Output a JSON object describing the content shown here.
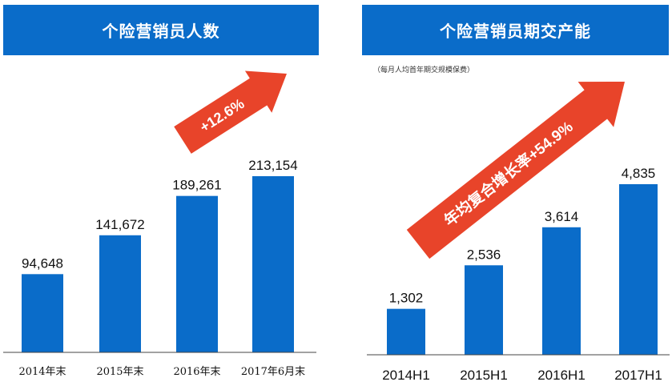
{
  "colors": {
    "header_bg": "#0A6CC9",
    "bar": "#0A6CC9",
    "arrow": "#E8442A",
    "axis": "#444444"
  },
  "left": {
    "title": "个险营销员人数",
    "arrow_label": "+12.6%"
  },
  "right": {
    "title": "个险营销员期交产能",
    "subtitle": "（每月人均首年期交规模保费）",
    "arrow_label": "年均复合增长率+54.9%"
  },
  "chart_data": [
    {
      "type": "bar",
      "title": "个险营销员人数",
      "categories": [
        "2014年末",
        "2015年末",
        "2016年末",
        "2017年6月末"
      ],
      "values": [
        94648,
        141672,
        189261,
        213154
      ],
      "value_labels": [
        "94,648",
        "141,672",
        "189,261",
        "213,154"
      ],
      "ylim": [
        0,
        300000
      ],
      "grid": false,
      "annotation": "+12.6%"
    },
    {
      "type": "bar",
      "title": "个险营销员期交产能",
      "subtitle": "（每月人均首年期交规模保费）",
      "categories": [
        "2014H1",
        "2015H1",
        "2016H1",
        "2017H1"
      ],
      "values": [
        1302,
        2536,
        3614,
        4835
      ],
      "value_labels": [
        "1,302",
        "2,536",
        "3,614",
        "4,835"
      ],
      "ylim": [
        0,
        6000
      ],
      "grid": false,
      "annotation": "年均复合增长率+54.9%"
    }
  ]
}
